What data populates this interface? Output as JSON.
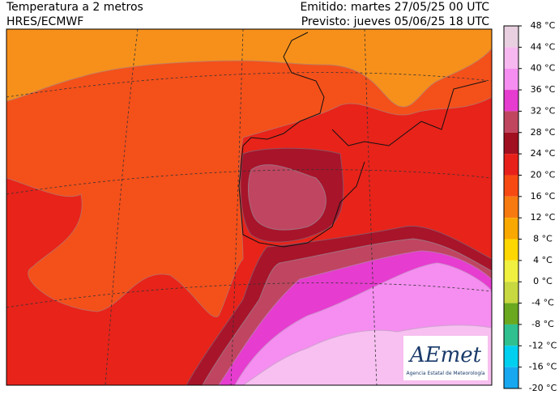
{
  "header": {
    "title_left": [
      "Temperatura a 2 metros",
      "HRES/ECMWF"
    ],
    "title_right": [
      "Emitido: martes 27/05/25 00 UTC",
      "Previsto: jueves 05/06/25 18 UTC"
    ]
  },
  "colorbar": {
    "labels": [
      "48 °C",
      "44 °C",
      "40 °C",
      "36 °C",
      "32 °C",
      "28 °C",
      "24 °C",
      "20 °C",
      "16 °C",
      "12 °C",
      "8 °C",
      "4 °C",
      "0 °C",
      "-4 °C",
      "-8 °C",
      "-12 °C",
      "-16 °C",
      "-20 °C"
    ]
  },
  "logo": {
    "name": "AEmet",
    "subtitle": "Agencia Estatal de Meteorología"
  }
}
